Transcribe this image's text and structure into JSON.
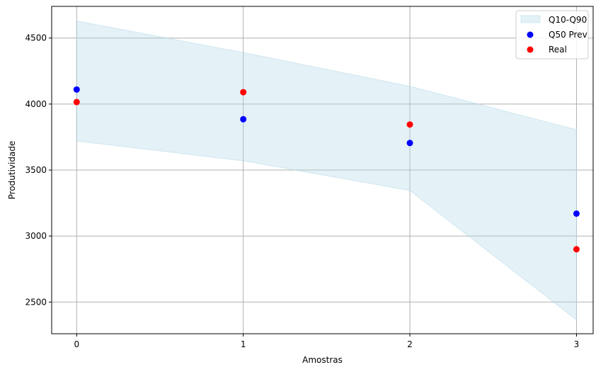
{
  "chart_data": {
    "type": "scatter",
    "title": "",
    "xlabel": "Amostras",
    "ylabel": "Produtividade",
    "x": [
      0,
      1,
      2,
      3
    ],
    "xticks": [
      "0",
      "1",
      "2",
      "3"
    ],
    "yticks": [
      "2500",
      "3000",
      "3500",
      "4000",
      "4500"
    ],
    "xlim": [
      -0.15,
      3.1
    ],
    "ylim": [
      2260,
      4740
    ],
    "grid": true,
    "legend_position": "top-right",
    "band": {
      "name": "Q10-Q90",
      "lower": [
        3720,
        3570,
        3345,
        2365
      ],
      "upper": [
        4630,
        4390,
        4135,
        3805
      ],
      "color": "#add8e6"
    },
    "series": [
      {
        "name": "Q50 Prev",
        "values": [
          4110,
          3885,
          3705,
          3170
        ],
        "color": "#0000ff"
      },
      {
        "name": "Real",
        "values": [
          4015,
          4090,
          3845,
          2900
        ],
        "color": "#ff0000"
      }
    ]
  }
}
